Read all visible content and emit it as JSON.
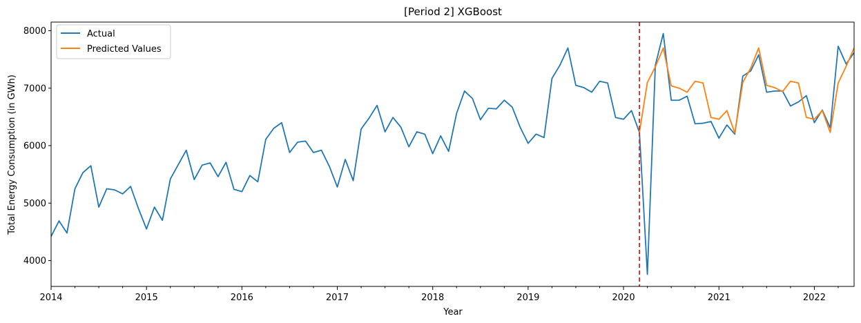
{
  "chart_data": {
    "type": "line",
    "title": "[Period 2] XGBoost",
    "xlabel": "Year",
    "ylabel": "Total Energy Consumption (in GWh)",
    "x_tick_labels": [
      "2014",
      "2015",
      "2016",
      "2017",
      "2018",
      "2019",
      "2020",
      "2021",
      "2022"
    ],
    "y_tick_labels": [
      "4000",
      "5000",
      "6000",
      "7000",
      "8000"
    ],
    "y_ticks": [
      4000,
      5000,
      6000,
      7000,
      8000
    ],
    "xlim": [
      "2014-01",
      "2022-06"
    ],
    "ylim": [
      3550,
      8150
    ],
    "grid": false,
    "legend_position": "top-left",
    "vertical_marker": {
      "x": "2020-03",
      "color": "#d62728",
      "style": "dashed"
    },
    "series": [
      {
        "name": "Actual",
        "color": "#1f77b4",
        "start": "2014-01",
        "values": [
          4420,
          4690,
          4480,
          5250,
          5530,
          5650,
          4930,
          5250,
          5230,
          5160,
          5290,
          4900,
          4550,
          4930,
          4700,
          5420,
          5670,
          5920,
          5410,
          5660,
          5700,
          5460,
          5710,
          5240,
          5200,
          5480,
          5370,
          6110,
          6300,
          6400,
          5880,
          6060,
          6080,
          5880,
          5920,
          5640,
          5280,
          5760,
          5390,
          6290,
          6480,
          6700,
          6240,
          6490,
          6320,
          5980,
          6240,
          6200,
          5860,
          6170,
          5900,
          6560,
          6950,
          6820,
          6450,
          6650,
          6640,
          6790,
          6670,
          6320,
          6040,
          6200,
          6140,
          7170,
          7400,
          7700,
          7050,
          7010,
          6930,
          7120,
          7090,
          6490,
          6460,
          6610,
          6230,
          3760,
          7400,
          7950,
          6790,
          6790,
          6860,
          6380,
          6390,
          6420,
          6130,
          6360,
          6200,
          7210,
          7300,
          7580,
          6930,
          6950,
          6950,
          6690,
          6760,
          6870,
          6400,
          6620,
          6310,
          7730,
          7420,
          7620
        ]
      },
      {
        "name": "Predicted Values",
        "color": "#ff7f0e",
        "start": "2020-03",
        "values": [
          6230,
          7100,
          7370,
          7700,
          7040,
          7000,
          6930,
          7120,
          7090,
          6490,
          6460,
          6610,
          6220,
          7100,
          7350,
          7700,
          7050,
          7010,
          6940,
          7120,
          7090,
          6490,
          6460,
          6610,
          6230,
          7090,
          7380,
          7700
        ]
      }
    ]
  }
}
